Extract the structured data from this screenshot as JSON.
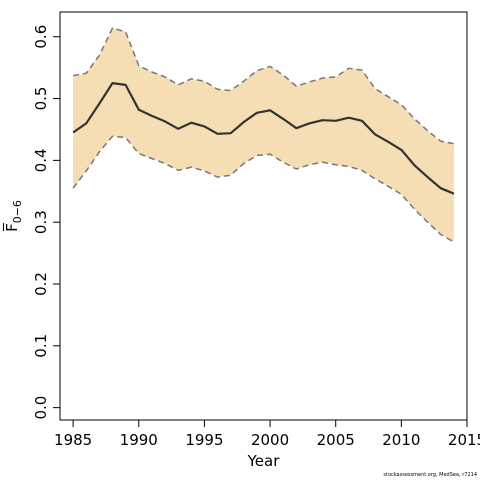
{
  "chart_data": {
    "type": "area",
    "title": "",
    "xlabel": "Year",
    "ylabel": "F̅",
    "ylabel_subscript": "0−6",
    "xlim": [
      1984,
      2015
    ],
    "ylim": [
      -0.02,
      0.64
    ],
    "xticks": [
      1985,
      1990,
      1995,
      2000,
      2005,
      2010,
      2015
    ],
    "yticks": [
      0.0,
      0.1,
      0.2,
      0.3,
      0.4,
      0.5,
      0.6
    ],
    "ytick_labels": [
      "0.0",
      "0.1",
      "0.2",
      "0.3",
      "0.4",
      "0.5",
      "0.6"
    ],
    "grid": false,
    "band_color": "#F5DEB3",
    "line_color": "#333333",
    "bound_color": "#777777",
    "x": [
      1985,
      1986,
      1987,
      1988,
      1989,
      1990,
      1991,
      1992,
      1993,
      1994,
      1995,
      1996,
      1997,
      1998,
      1999,
      2000,
      2001,
      2002,
      2003,
      2004,
      2005,
      2006,
      2007,
      2008,
      2009,
      2010,
      2011,
      2012,
      2013,
      2014
    ],
    "series": [
      {
        "values": [
          0.445,
          0.46,
          0.492,
          0.525,
          0.522,
          0.482,
          0.472,
          0.463,
          0.451,
          0.461,
          0.455,
          0.443,
          0.444,
          0.462,
          0.477,
          0.481,
          0.467,
          0.452,
          0.46,
          0.465,
          0.464,
          0.469,
          0.464,
          0.442,
          0.43,
          0.417,
          0.392,
          0.373,
          0.355,
          0.346
        ]
      },
      {
        "values": [
          0.537,
          0.541,
          0.57,
          0.614,
          0.608,
          0.553,
          0.543,
          0.535,
          0.522,
          0.532,
          0.528,
          0.515,
          0.513,
          0.528,
          0.545,
          0.552,
          0.538,
          0.52,
          0.527,
          0.533,
          0.535,
          0.549,
          0.546,
          0.516,
          0.503,
          0.49,
          0.467,
          0.448,
          0.431,
          0.427
        ]
      },
      {
        "values": [
          0.355,
          0.383,
          0.414,
          0.439,
          0.437,
          0.411,
          0.403,
          0.395,
          0.384,
          0.389,
          0.383,
          0.373,
          0.376,
          0.395,
          0.408,
          0.41,
          0.397,
          0.386,
          0.393,
          0.397,
          0.393,
          0.39,
          0.384,
          0.37,
          0.358,
          0.345,
          0.321,
          0.3,
          0.28,
          0.268
        ]
      }
    ]
  },
  "footer": {
    "credit": "stockassessment.org, MedSea, r7214"
  }
}
